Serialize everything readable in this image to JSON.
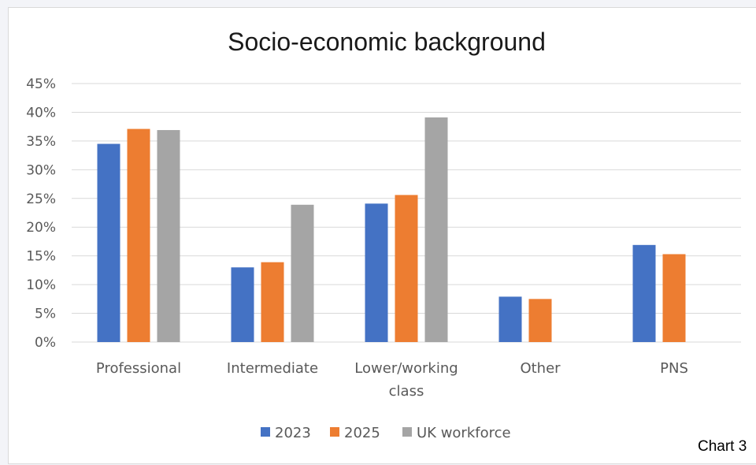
{
  "caption": "Chart 3",
  "chart_data": {
    "type": "bar",
    "title": "Socio-economic background",
    "xlabel": "",
    "ylabel": "",
    "categories": [
      [
        "Professional"
      ],
      [
        "Intermediate"
      ],
      [
        "Lower/working",
        "class"
      ],
      [
        "Other"
      ],
      [
        "PNS"
      ]
    ],
    "series": [
      {
        "name": "2023",
        "color": "#4472c4",
        "values": [
          34.5,
          13.0,
          24.1,
          7.9,
          16.9
        ]
      },
      {
        "name": "2025",
        "color": "#ed7d31",
        "values": [
          37.1,
          13.9,
          25.6,
          7.5,
          15.3
        ]
      },
      {
        "name": "UK workforce",
        "color": "#a5a5a5",
        "values": [
          36.9,
          23.9,
          39.1,
          null,
          null
        ]
      }
    ],
    "ylim": [
      0,
      45
    ],
    "yticks": [
      0,
      5,
      10,
      15,
      20,
      25,
      30,
      35,
      40,
      45
    ],
    "ytick_labels": [
      "0%",
      "5%",
      "10%",
      "15%",
      "20%",
      "25%",
      "30%",
      "35%",
      "40%",
      "45%"
    ],
    "grid": true,
    "legend_position": "bottom"
  }
}
